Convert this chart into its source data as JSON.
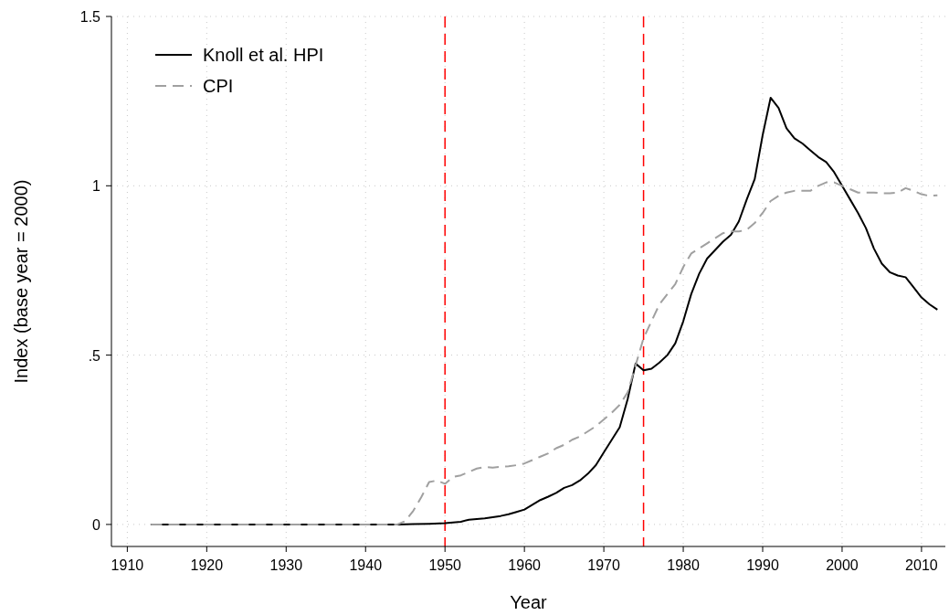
{
  "chart_data": {
    "type": "line",
    "xlabel": "Year",
    "ylabel": "Index (base year = 2000)",
    "xlim": [
      1908,
      2013
    ],
    "ylim": [
      -0.065,
      1.5
    ],
    "xticks": [
      1910,
      1920,
      1930,
      1940,
      1950,
      1960,
      1970,
      1980,
      1990,
      2000,
      2010
    ],
    "yticks": [
      0,
      {
        "value": 0.5,
        "label": ".5"
      },
      1,
      1.5
    ],
    "grid": true,
    "legend": "top left",
    "ref_lines": [
      {
        "axis": "x",
        "value": 1950,
        "color": "#ff0000",
        "line_style": "dashed"
      },
      {
        "axis": "x",
        "value": 1975,
        "color": "#ff0000",
        "line_style": "dashed"
      }
    ],
    "series": [
      {
        "name": "Knoll et al. HPI",
        "color": "#000000",
        "line_style": "solid",
        "x": [
          1913,
          1920,
          1930,
          1940,
          1944,
          1946,
          1948,
          1950,
          1952,
          1953,
          1955,
          1957,
          1958,
          1959,
          1960,
          1961,
          1962,
          1963,
          1964,
          1965,
          1966,
          1967,
          1968,
          1969,
          1970,
          1971,
          1972,
          1973,
          1974,
          1975,
          1976,
          1977,
          1978,
          1979,
          1980,
          1981,
          1982,
          1983,
          1984,
          1985,
          1986,
          1987,
          1988,
          1989,
          1990,
          1991,
          1992,
          1993,
          1994,
          1995,
          1996,
          1997,
          1998,
          1999,
          2000,
          2001,
          2002,
          2003,
          2004,
          2005,
          2006,
          2007,
          2008,
          2009,
          2010,
          2011,
          2012
        ],
        "values": [
          0,
          0,
          0,
          0,
          0,
          0.001,
          0.002,
          0.004,
          0.008,
          0.014,
          0.018,
          0.025,
          0.03,
          0.037,
          0.044,
          0.058,
          0.072,
          0.082,
          0.093,
          0.108,
          0.116,
          0.13,
          0.15,
          0.175,
          0.213,
          0.25,
          0.287,
          0.37,
          0.475,
          0.455,
          0.46,
          0.478,
          0.5,
          0.535,
          0.6,
          0.68,
          0.74,
          0.785,
          0.81,
          0.835,
          0.855,
          0.895,
          0.96,
          1.02,
          1.15,
          1.26,
          1.23,
          1.17,
          1.14,
          1.125,
          1.105,
          1.085,
          1.07,
          1.04,
          1.0,
          0.96,
          0.92,
          0.875,
          0.815,
          0.77,
          0.745,
          0.735,
          0.73,
          0.7,
          0.67,
          0.65,
          0.634
        ]
      },
      {
        "name": "CPI",
        "color": "#a0a0a0",
        "line_style": "dashed",
        "x": [
          1913,
          1920,
          1930,
          1940,
          1944,
          1945,
          1946,
          1947,
          1948,
          1949,
          1950,
          1951,
          1952,
          1953,
          1954,
          1955,
          1956,
          1957,
          1958,
          1959,
          1960,
          1961,
          1962,
          1963,
          1964,
          1965,
          1966,
          1967,
          1968,
          1969,
          1970,
          1971,
          1972,
          1973,
          1974,
          1975,
          1976,
          1977,
          1978,
          1979,
          1980,
          1981,
          1982,
          1983,
          1984,
          1985,
          1986,
          1987,
          1988,
          1989,
          1990,
          1991,
          1992,
          1993,
          1994,
          1995,
          1996,
          1997,
          1998,
          1999,
          2000,
          2001,
          2002,
          2003,
          2004,
          2005,
          2006,
          2007,
          2008,
          2009,
          2010,
          2011,
          2012
        ],
        "values": [
          0,
          0,
          0,
          0,
          0,
          0.01,
          0.04,
          0.08,
          0.125,
          0.13,
          0.12,
          0.14,
          0.145,
          0.155,
          0.165,
          0.17,
          0.168,
          0.17,
          0.172,
          0.175,
          0.18,
          0.19,
          0.2,
          0.21,
          0.225,
          0.235,
          0.25,
          0.26,
          0.275,
          0.29,
          0.31,
          0.33,
          0.353,
          0.39,
          0.47,
          0.55,
          0.6,
          0.65,
          0.68,
          0.71,
          0.76,
          0.8,
          0.815,
          0.83,
          0.845,
          0.86,
          0.865,
          0.865,
          0.87,
          0.89,
          0.92,
          0.955,
          0.97,
          0.98,
          0.985,
          0.985,
          0.985,
          1.0,
          1.01,
          1.01,
          1.0,
          0.99,
          0.98,
          0.98,
          0.98,
          0.978,
          0.978,
          0.98,
          0.993,
          0.985,
          0.975,
          0.97,
          0.972
        ]
      }
    ]
  }
}
